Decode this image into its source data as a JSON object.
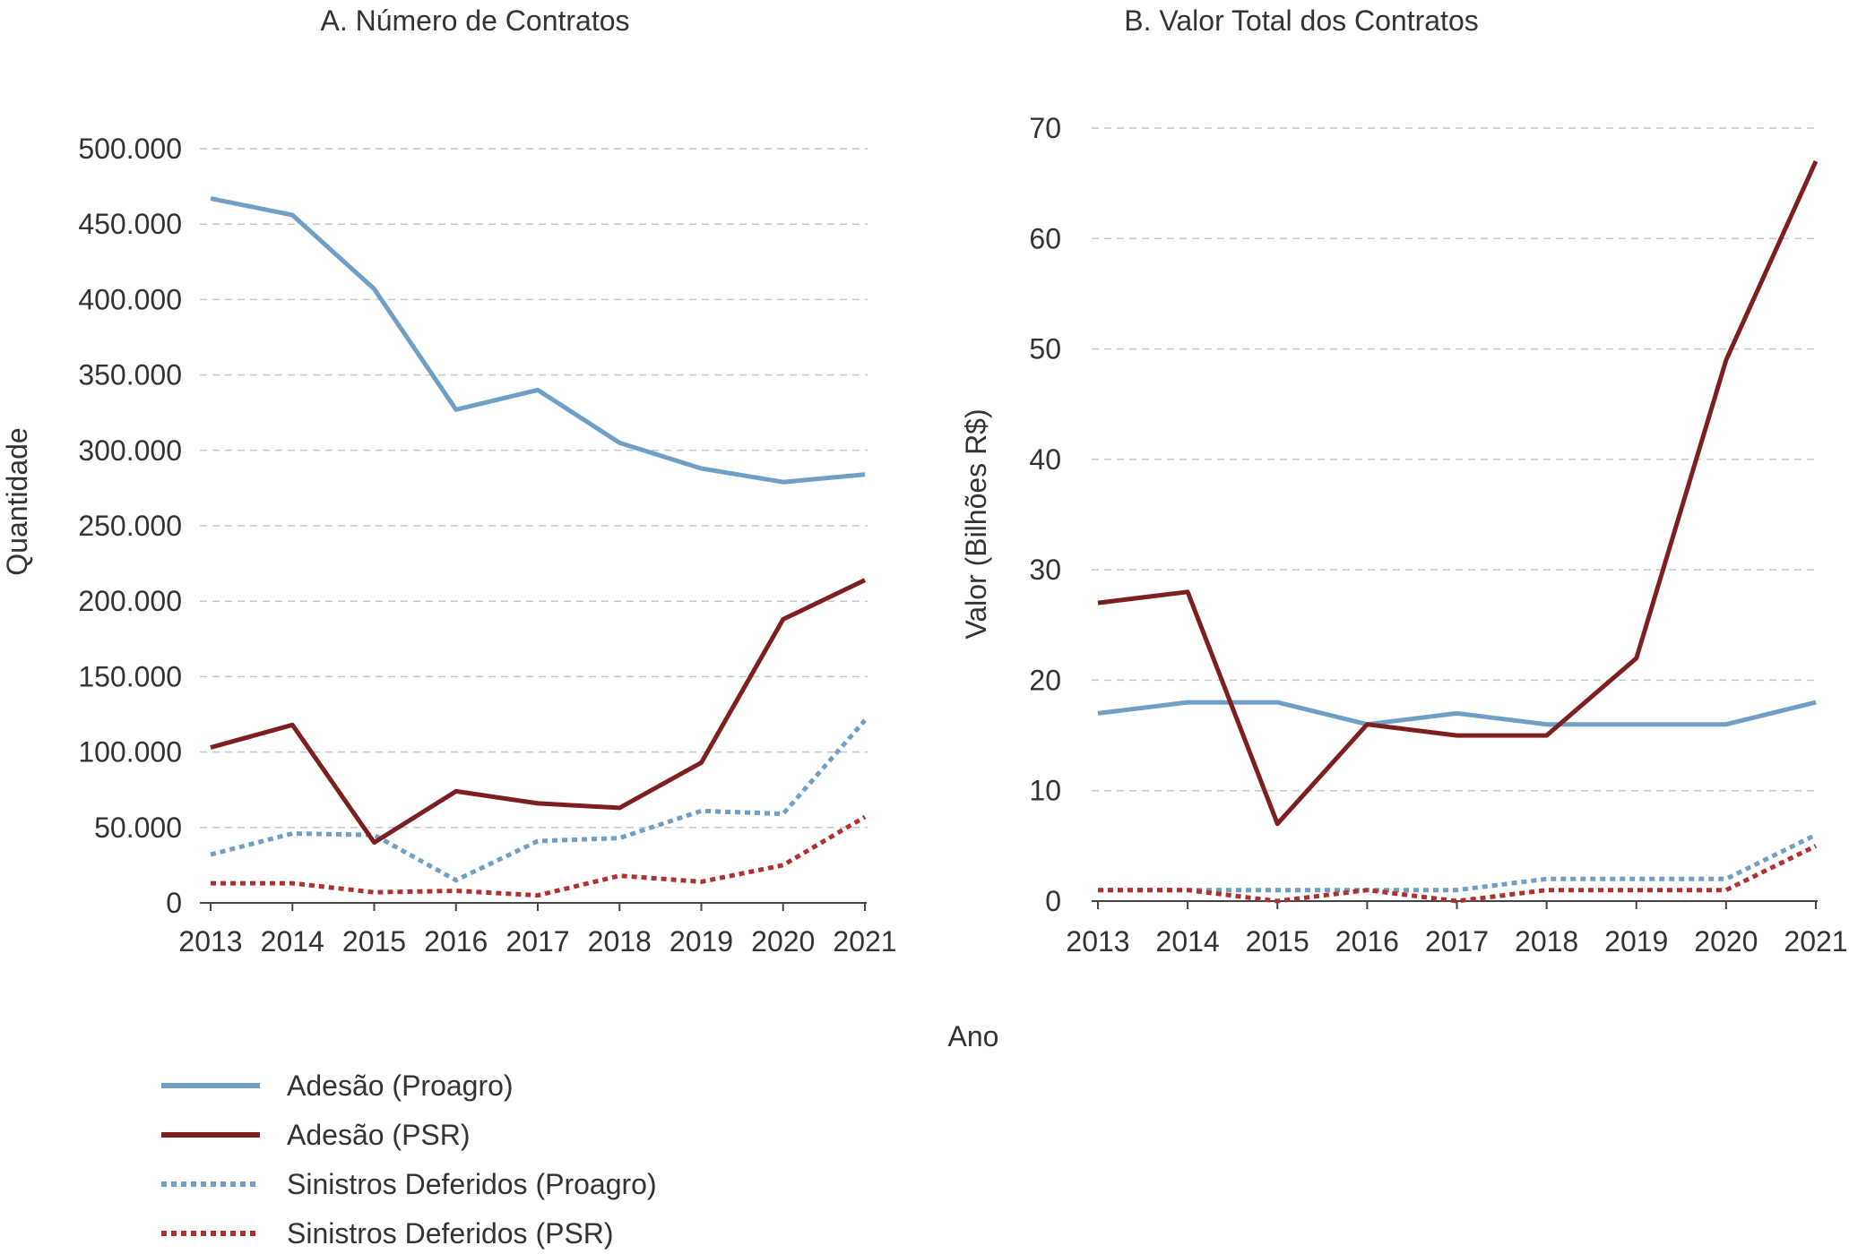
{
  "chart_data": [
    {
      "type": "line",
      "title": "A. Número de Contratos",
      "ylabel": "Quantidade",
      "xlabel": "Ano",
      "x": [
        "2013",
        "2014",
        "2015",
        "2016",
        "2017",
        "2018",
        "2019",
        "2020",
        "2021"
      ],
      "ylim": [
        0,
        500000
      ],
      "yticks": [
        0,
        50000,
        100000,
        150000,
        200000,
        250000,
        300000,
        350000,
        400000,
        450000,
        500000
      ],
      "ytick_labels": [
        "0",
        "50.000",
        "100.000",
        "150.000",
        "200.000",
        "250.000",
        "300.000",
        "350.000",
        "400.000",
        "450.000",
        "500.000"
      ],
      "grid": true,
      "series": [
        {
          "name": "Adesão (Proagro)",
          "values": [
            467000,
            456000,
            407000,
            327000,
            340000,
            305000,
            288000,
            279000,
            284000
          ]
        },
        {
          "name": "Adesão (PSR)",
          "values": [
            103000,
            118000,
            40000,
            74000,
            66000,
            63000,
            93000,
            188000,
            214000
          ]
        },
        {
          "name": "Sinistros Deferidos (Proagro)",
          "values": [
            32000,
            46000,
            45000,
            15000,
            41000,
            43000,
            61000,
            59000,
            121000
          ]
        },
        {
          "name": "Sinistros Deferidos (PSR)",
          "values": [
            13000,
            13000,
            7000,
            8000,
            5000,
            18000,
            14000,
            25000,
            57000
          ]
        }
      ]
    },
    {
      "type": "line",
      "title": "B. Valor Total dos Contratos",
      "ylabel": "Valor (Bilhões R$)",
      "xlabel": "Ano",
      "x": [
        "2013",
        "2014",
        "2015",
        "2016",
        "2017",
        "2018",
        "2019",
        "2020",
        "2021"
      ],
      "ylim": [
        0,
        70
      ],
      "yticks": [
        0,
        10,
        20,
        30,
        40,
        50,
        60,
        70
      ],
      "ytick_labels": [
        "0",
        "10",
        "20",
        "30",
        "40",
        "50",
        "60",
        "70"
      ],
      "grid": true,
      "series": [
        {
          "name": "Adesão (Proagro)",
          "values": [
            17,
            18,
            18,
            16,
            17,
            16,
            16,
            16,
            18
          ]
        },
        {
          "name": "Adesão (PSR)",
          "values": [
            27,
            28,
            7,
            16,
            15,
            15,
            22,
            49,
            67
          ]
        },
        {
          "name": "Sinistros Deferidos (Proagro)",
          "values": [
            1,
            1,
            1,
            1,
            1,
            2,
            2,
            2,
            6
          ]
        },
        {
          "name": "Sinistros Deferidos (PSR)",
          "values": [
            1,
            1,
            0,
            1,
            0,
            1,
            1,
            1,
            5
          ]
        }
      ]
    }
  ],
  "shared_xlabel": "Ano",
  "legend": {
    "placement": "bottom-left",
    "items": [
      {
        "name": "Adesão (Proagro)",
        "color": "#6f9fc4",
        "style": "solid"
      },
      {
        "name": "Adesão (PSR)",
        "color": "#7d1f1f",
        "style": "solid"
      },
      {
        "name": "Sinistros Deferidos (Proagro)",
        "color": "#6f9fc4",
        "style": "dotted"
      },
      {
        "name": "Sinistros Deferidos (PSR)",
        "color": "#b03030",
        "style": "dotted"
      }
    ]
  }
}
